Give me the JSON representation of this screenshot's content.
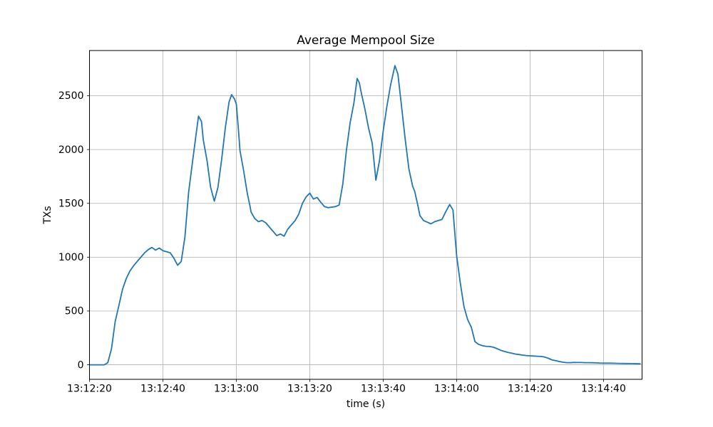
{
  "figure": {
    "background": "#ffffff"
  },
  "chart_data": {
    "type": "line",
    "title": "Average Mempool Size",
    "xlabel": "time (s)",
    "ylabel": "TXs",
    "grid": true,
    "legend": false,
    "line_color": "#1f77b4",
    "grid_color": "#b0b0b0",
    "spine_color": "#000000",
    "x_tick_labels": [
      "13:12:20",
      "13:12:40",
      "13:13:00",
      "13:13:20",
      "13:13:40",
      "13:14:00",
      "13:14:20",
      "13:14:40"
    ],
    "x_tick_seconds": [
      0,
      20,
      40,
      60,
      80,
      100,
      120,
      140
    ],
    "y_ticks": [
      0,
      500,
      1000,
      1500,
      2000,
      2500
    ],
    "xlim_seconds": [
      0,
      150.5
    ],
    "ylim": [
      -135,
      2920
    ],
    "x_start_label": "13:12:20",
    "series": [
      {
        "points": [
          [
            0,
            0
          ],
          [
            2,
            0
          ],
          [
            4,
            0
          ],
          [
            5,
            20
          ],
          [
            6,
            150
          ],
          [
            7,
            400
          ],
          [
            8,
            550
          ],
          [
            9,
            700
          ],
          [
            10,
            800
          ],
          [
            11,
            870
          ],
          [
            12,
            920
          ],
          [
            13,
            960
          ],
          [
            14,
            1000
          ],
          [
            15,
            1040
          ],
          [
            16,
            1070
          ],
          [
            17,
            1090
          ],
          [
            18,
            1065
          ],
          [
            19,
            1085
          ],
          [
            20,
            1060
          ],
          [
            21,
            1050
          ],
          [
            22,
            1040
          ],
          [
            23,
            990
          ],
          [
            24,
            925
          ],
          [
            25,
            960
          ],
          [
            26,
            1190
          ],
          [
            27,
            1600
          ],
          [
            28,
            1870
          ],
          [
            29,
            2130
          ],
          [
            29.7,
            2310
          ],
          [
            30.5,
            2260
          ],
          [
            31,
            2090
          ],
          [
            32,
            1900
          ],
          [
            33,
            1650
          ],
          [
            34,
            1520
          ],
          [
            35,
            1650
          ],
          [
            36,
            1910
          ],
          [
            37,
            2200
          ],
          [
            38,
            2440
          ],
          [
            38.7,
            2510
          ],
          [
            39.5,
            2470
          ],
          [
            40,
            2420
          ],
          [
            40.6,
            2170
          ],
          [
            41,
            1990
          ],
          [
            42,
            1800
          ],
          [
            43,
            1590
          ],
          [
            43.7,
            1480
          ],
          [
            44,
            1420
          ],
          [
            45,
            1360
          ],
          [
            46,
            1330
          ],
          [
            47,
            1340
          ],
          [
            48,
            1320
          ],
          [
            49,
            1280
          ],
          [
            50,
            1240
          ],
          [
            51,
            1200
          ],
          [
            52,
            1215
          ],
          [
            53,
            1195
          ],
          [
            54,
            1260
          ],
          [
            55,
            1300
          ],
          [
            56,
            1340
          ],
          [
            57,
            1400
          ],
          [
            58,
            1500
          ],
          [
            59,
            1560
          ],
          [
            60,
            1595
          ],
          [
            61,
            1540
          ],
          [
            62,
            1555
          ],
          [
            63,
            1510
          ],
          [
            64,
            1470
          ],
          [
            65,
            1460
          ],
          [
            66,
            1465
          ],
          [
            67,
            1470
          ],
          [
            68,
            1485
          ],
          [
            69,
            1680
          ],
          [
            70,
            2000
          ],
          [
            71,
            2250
          ],
          [
            72,
            2430
          ],
          [
            72.9,
            2660
          ],
          [
            73.5,
            2620
          ],
          [
            74,
            2530
          ],
          [
            75,
            2380
          ],
          [
            76,
            2200
          ],
          [
            77,
            2060
          ],
          [
            78,
            1715
          ],
          [
            79,
            1900
          ],
          [
            80,
            2175
          ],
          [
            81,
            2400
          ],
          [
            82,
            2600
          ],
          [
            83.2,
            2780
          ],
          [
            84,
            2700
          ],
          [
            85,
            2400
          ],
          [
            86,
            2090
          ],
          [
            87,
            1820
          ],
          [
            88,
            1660
          ],
          [
            88.6,
            1610
          ],
          [
            89.3,
            1500
          ],
          [
            90,
            1385
          ],
          [
            91,
            1340
          ],
          [
            92,
            1325
          ],
          [
            93,
            1310
          ],
          [
            94,
            1330
          ],
          [
            95,
            1340
          ],
          [
            96,
            1350
          ],
          [
            97,
            1420
          ],
          [
            98.1,
            1490
          ],
          [
            99,
            1438
          ],
          [
            100,
            1010
          ],
          [
            101,
            760
          ],
          [
            102,
            540
          ],
          [
            103,
            420
          ],
          [
            104,
            350
          ],
          [
            105,
            215
          ],
          [
            106,
            190
          ],
          [
            107,
            178
          ],
          [
            108,
            172
          ],
          [
            109,
            170
          ],
          [
            110,
            163
          ],
          [
            111,
            150
          ],
          [
            112,
            135
          ],
          [
            113,
            125
          ],
          [
            114,
            115
          ],
          [
            115,
            108
          ],
          [
            116,
            100
          ],
          [
            117,
            95
          ],
          [
            118,
            90
          ],
          [
            119,
            86
          ],
          [
            120,
            83
          ],
          [
            121,
            81
          ],
          [
            122,
            79
          ],
          [
            123,
            77
          ],
          [
            124,
            72
          ],
          [
            125,
            60
          ],
          [
            126,
            45
          ],
          [
            127,
            38
          ],
          [
            128,
            30
          ],
          [
            129,
            24
          ],
          [
            130,
            20
          ],
          [
            131,
            20
          ],
          [
            132,
            22
          ],
          [
            133,
            21
          ],
          [
            134,
            21
          ],
          [
            135,
            20
          ],
          [
            136,
            20
          ],
          [
            137,
            19
          ],
          [
            138,
            18
          ],
          [
            139,
            16
          ],
          [
            140,
            15
          ],
          [
            142,
            15
          ],
          [
            144,
            13
          ],
          [
            146,
            12
          ],
          [
            148,
            11
          ],
          [
            150,
            10
          ]
        ]
      }
    ]
  }
}
